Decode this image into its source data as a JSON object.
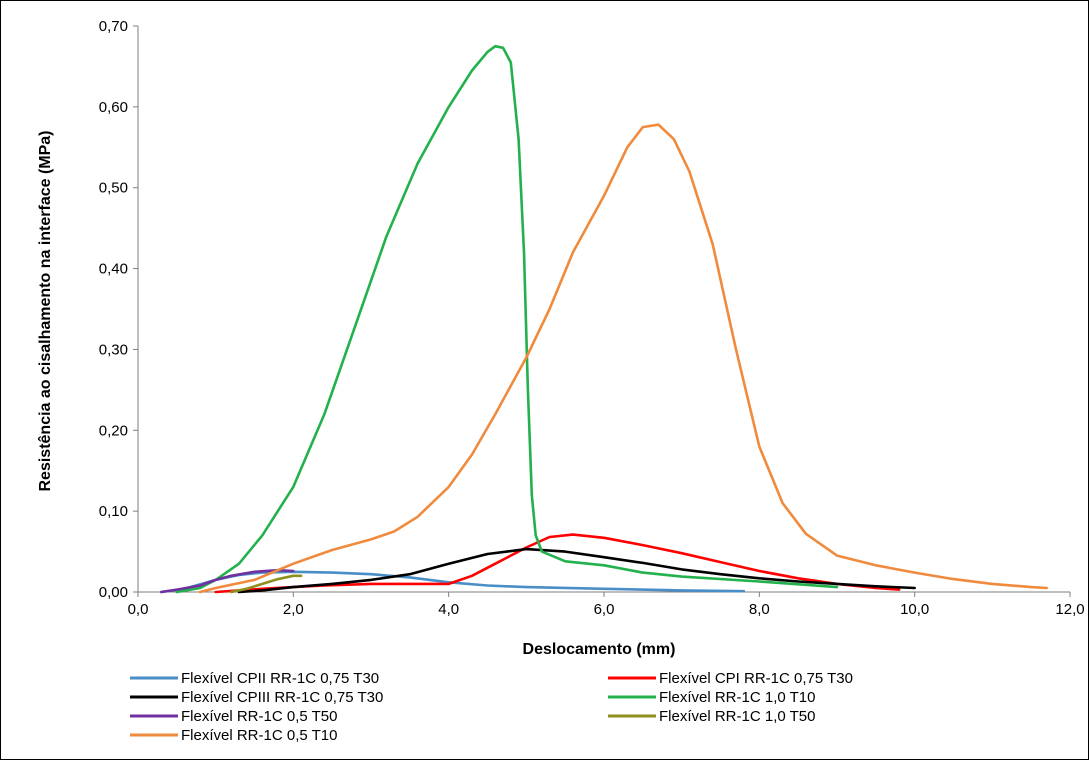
{
  "chart_data": {
    "type": "line",
    "xlabel": "Deslocamento (mm)",
    "ylabel": "Resistência  ao cisalhamento na interface (MPa)",
    "xlim": [
      0,
      12
    ],
    "ylim": [
      0,
      0.7
    ],
    "x_ticks": [
      "0,0",
      "2,0",
      "4,0",
      "6,0",
      "8,0",
      "10,0",
      "12,0"
    ],
    "y_ticks": [
      "0,00",
      "0,10",
      "0,20",
      "0,30",
      "0,40",
      "0,50",
      "0,60",
      "0,70"
    ],
    "grid": false,
    "legend_position": "bottom",
    "series": [
      {
        "name": "Flexível CPII RR-1C 0,75 T30",
        "color": "#4a8ec8",
        "points": [
          [
            0.3,
            0
          ],
          [
            0.6,
            0.004
          ],
          [
            1.0,
            0.015
          ],
          [
            1.3,
            0.021
          ],
          [
            1.6,
            0.024
          ],
          [
            2.0,
            0.025
          ],
          [
            2.5,
            0.024
          ],
          [
            3.0,
            0.022
          ],
          [
            3.5,
            0.018
          ],
          [
            4.0,
            0.012
          ],
          [
            4.5,
            0.008
          ],
          [
            5.0,
            0.006
          ],
          [
            6.0,
            0.004
          ],
          [
            7.0,
            0.002
          ],
          [
            7.8,
            0.001
          ]
        ]
      },
      {
        "name": "Flexível CPI RR-1C 0,75 T30",
        "color": "#ff0000",
        "points": [
          [
            1.0,
            0
          ],
          [
            1.3,
            0.002
          ],
          [
            1.6,
            0.004
          ],
          [
            2.0,
            0.006
          ],
          [
            2.4,
            0.008
          ],
          [
            3.0,
            0.01
          ],
          [
            3.5,
            0.01
          ],
          [
            4.0,
            0.01
          ],
          [
            4.3,
            0.02
          ],
          [
            4.6,
            0.035
          ],
          [
            5.0,
            0.055
          ],
          [
            5.3,
            0.068
          ],
          [
            5.6,
            0.071
          ],
          [
            6.0,
            0.067
          ],
          [
            6.5,
            0.058
          ],
          [
            7.0,
            0.048
          ],
          [
            7.5,
            0.037
          ],
          [
            8.0,
            0.026
          ],
          [
            8.5,
            0.017
          ],
          [
            9.0,
            0.01
          ],
          [
            9.5,
            0.005
          ],
          [
            9.8,
            0.003
          ]
        ]
      },
      {
        "name": "Flexível CPIII RR-1C 0,75 T30",
        "color": "#000000",
        "points": [
          [
            1.3,
            0
          ],
          [
            1.6,
            0.002
          ],
          [
            2.0,
            0.006
          ],
          [
            2.5,
            0.01
          ],
          [
            3.0,
            0.015
          ],
          [
            3.5,
            0.022
          ],
          [
            4.0,
            0.035
          ],
          [
            4.5,
            0.047
          ],
          [
            5.0,
            0.053
          ],
          [
            5.5,
            0.05
          ],
          [
            6.0,
            0.043
          ],
          [
            6.5,
            0.036
          ],
          [
            7.0,
            0.028
          ],
          [
            7.5,
            0.022
          ],
          [
            8.0,
            0.017
          ],
          [
            8.5,
            0.013
          ],
          [
            9.0,
            0.01
          ],
          [
            9.5,
            0.007
          ],
          [
            10.0,
            0.005
          ]
        ]
      },
      {
        "name": "Flexível  RR-1C 1,0 T10",
        "color": "#22b14c",
        "points": [
          [
            0.5,
            0
          ],
          [
            0.8,
            0.005
          ],
          [
            1.0,
            0.015
          ],
          [
            1.3,
            0.035
          ],
          [
            1.6,
            0.07
          ],
          [
            2.0,
            0.13
          ],
          [
            2.4,
            0.22
          ],
          [
            2.8,
            0.33
          ],
          [
            3.2,
            0.44
          ],
          [
            3.6,
            0.53
          ],
          [
            4.0,
            0.6
          ],
          [
            4.3,
            0.645
          ],
          [
            4.5,
            0.668
          ],
          [
            4.6,
            0.675
          ],
          [
            4.7,
            0.673
          ],
          [
            4.8,
            0.655
          ],
          [
            4.9,
            0.56
          ],
          [
            4.97,
            0.42
          ],
          [
            5.02,
            0.25
          ],
          [
            5.07,
            0.12
          ],
          [
            5.12,
            0.07
          ],
          [
            5.2,
            0.05
          ],
          [
            5.5,
            0.038
          ],
          [
            6.0,
            0.033
          ],
          [
            6.5,
            0.024
          ],
          [
            7.0,
            0.019
          ],
          [
            8.0,
            0.013
          ],
          [
            9.0,
            0.006
          ]
        ]
      },
      {
        "name": "Flexível  RR-1C 0,5 T50",
        "color": "#7030a0",
        "points": [
          [
            0.3,
            0
          ],
          [
            0.5,
            0.003
          ],
          [
            0.8,
            0.008
          ],
          [
            1.0,
            0.015
          ],
          [
            1.2,
            0.02
          ],
          [
            1.5,
            0.025
          ],
          [
            1.8,
            0.027
          ],
          [
            2.0,
            0.026
          ]
        ]
      },
      {
        "name": "Flexível  RR-1C 1,0 T50",
        "color": "#8f8f1e",
        "points": [
          [
            1.2,
            0
          ],
          [
            1.4,
            0.004
          ],
          [
            1.6,
            0.01
          ],
          [
            1.8,
            0.016
          ],
          [
            2.0,
            0.02
          ],
          [
            2.1,
            0.02
          ]
        ]
      },
      {
        "name": "Flexível  RR-1C 0,5 T10",
        "color": "#f08a3c",
        "points": [
          [
            0.8,
            0
          ],
          [
            1.0,
            0.005
          ],
          [
            1.5,
            0.015
          ],
          [
            2.0,
            0.035
          ],
          [
            2.5,
            0.052
          ],
          [
            3.0,
            0.065
          ],
          [
            3.3,
            0.075
          ],
          [
            3.6,
            0.093
          ],
          [
            4.0,
            0.13
          ],
          [
            4.3,
            0.17
          ],
          [
            4.6,
            0.22
          ],
          [
            5.0,
            0.29
          ],
          [
            5.3,
            0.35
          ],
          [
            5.6,
            0.42
          ],
          [
            6.0,
            0.49
          ],
          [
            6.3,
            0.55
          ],
          [
            6.5,
            0.575
          ],
          [
            6.7,
            0.578
          ],
          [
            6.9,
            0.56
          ],
          [
            7.1,
            0.52
          ],
          [
            7.4,
            0.43
          ],
          [
            7.7,
            0.3
          ],
          [
            8.0,
            0.18
          ],
          [
            8.3,
            0.11
          ],
          [
            8.6,
            0.072
          ],
          [
            9.0,
            0.045
          ],
          [
            9.5,
            0.033
          ],
          [
            10.0,
            0.024
          ],
          [
            10.5,
            0.016
          ],
          [
            11.0,
            0.01
          ],
          [
            11.5,
            0.006
          ],
          [
            11.7,
            0.005
          ]
        ]
      }
    ]
  }
}
